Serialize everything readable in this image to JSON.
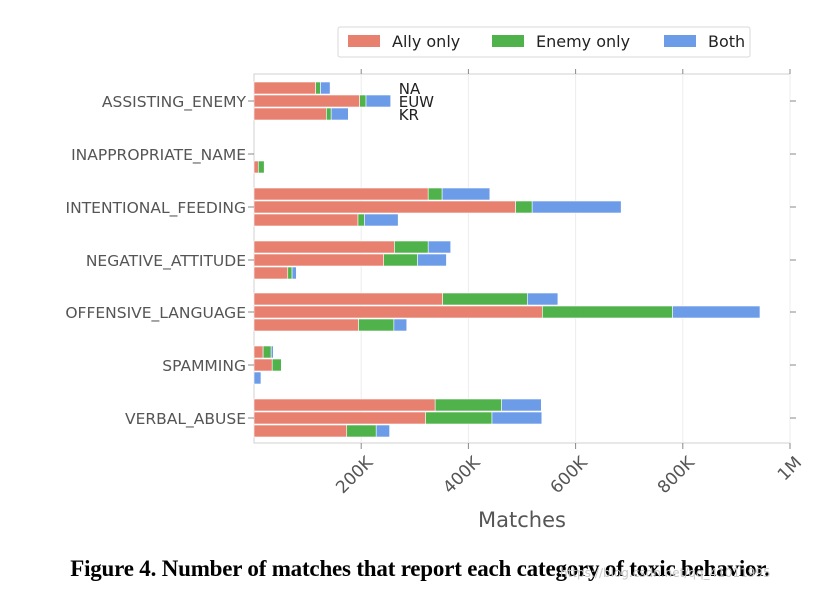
{
  "chart_data": {
    "type": "bar",
    "orientation": "horizontal",
    "stacked": true,
    "categories": [
      "ASSISTING_ENEMY",
      "INAPPROPRIATE_NAME",
      "INTENTIONAL_FEEDING",
      "NEGATIVE_ATTITUDE",
      "OFFENSIVE_LANGUAGE",
      "SPAMMING",
      "VERBAL_ABUSE"
    ],
    "regions": [
      "NA",
      "EUW",
      "KR"
    ],
    "series": [
      {
        "name": "Ally only",
        "color": "#e8806f",
        "values": {
          "NA": [
            115000,
            0,
            325000,
            262000,
            352000,
            17000,
            338000
          ],
          "EUW": [
            197000,
            0,
            488000,
            242000,
            538000,
            34000,
            320000
          ],
          "KR": [
            135000,
            8000,
            194000,
            63000,
            195000,
            0,
            173000
          ]
        }
      },
      {
        "name": "Enemy only",
        "color": "#4fb24a",
        "values": {
          "NA": [
            9000,
            0,
            26000,
            63000,
            158000,
            15000,
            124000
          ],
          "EUW": [
            12000,
            0,
            31000,
            63000,
            243000,
            17000,
            124000
          ],
          "KR": [
            9000,
            11000,
            12000,
            8000,
            66000,
            0,
            55000
          ]
        }
      },
      {
        "name": "Both",
        "color": "#6c9be8",
        "values": {
          "NA": [
            18000,
            0,
            89000,
            42000,
            57000,
            4000,
            74000
          ],
          "EUW": [
            46000,
            0,
            166000,
            54000,
            163000,
            0,
            93000
          ],
          "KR": [
            32000,
            0,
            63000,
            8000,
            24000,
            13000,
            25000
          ]
        }
      }
    ],
    "xlabel": "Matches",
    "xlim": [
      0,
      1000000
    ],
    "xticks": [
      200000,
      400000,
      600000,
      800000,
      1000000
    ],
    "xtick_labels": [
      "200K",
      "400K",
      "600K",
      "800K",
      "1M"
    ],
    "grid": true,
    "legend": {
      "position": "top-right",
      "entries": [
        "Ally only",
        "Enemy only",
        "Both"
      ]
    },
    "annotations": [
      "NA",
      "EUW",
      "KR"
    ],
    "annotation_category": "ASSISTING_ENEMY"
  },
  "caption": "Figure 4. Number of matches that report each category of toxic behavior.",
  "watermark": "https://blog.csdn.net/qq_41011995"
}
